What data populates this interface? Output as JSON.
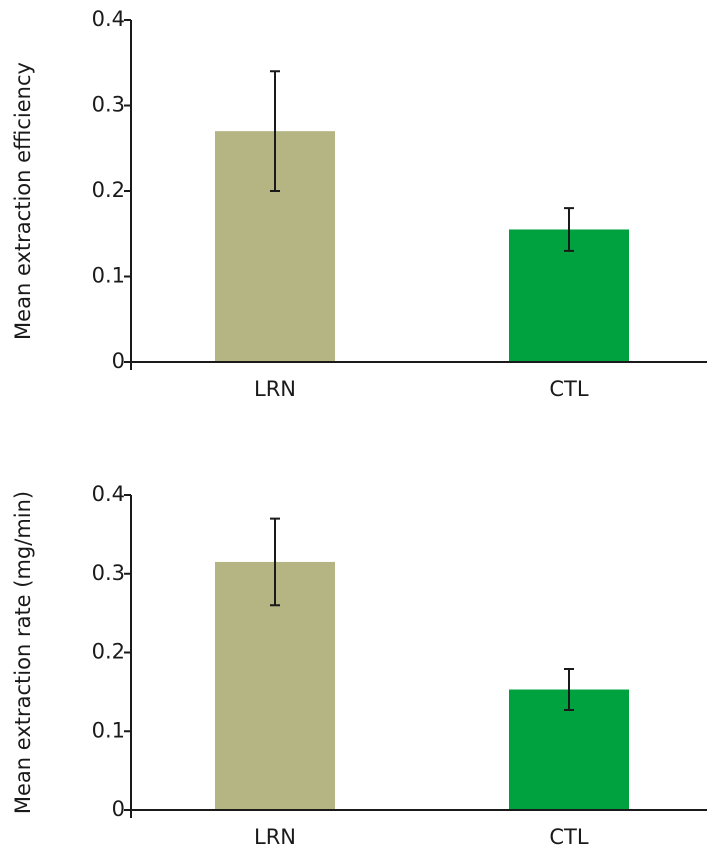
{
  "chart_data": [
    {
      "type": "bar",
      "y_label": "Mean extraction efficiency",
      "categories": [
        "LRN",
        "CTL"
      ],
      "values": [
        0.27,
        0.155
      ],
      "errors": [
        0.07,
        0.025
      ],
      "colors": [
        "#b5b583",
        "#00a23f"
      ],
      "ylim": [
        0,
        0.4
      ],
      "yticks": [
        0,
        0.1,
        0.2,
        0.3,
        0.4
      ]
    },
    {
      "type": "bar",
      "y_label": "Mean extraction rate (mg/min)",
      "categories": [
        "LRN",
        "CTL"
      ],
      "values": [
        0.315,
        0.153
      ],
      "errors": [
        0.055,
        0.026
      ],
      "colors": [
        "#b5b583",
        "#00a23f"
      ],
      "ylim": [
        0,
        0.4
      ],
      "yticks": [
        0,
        0.1,
        0.2,
        0.3,
        0.4
      ]
    }
  ]
}
